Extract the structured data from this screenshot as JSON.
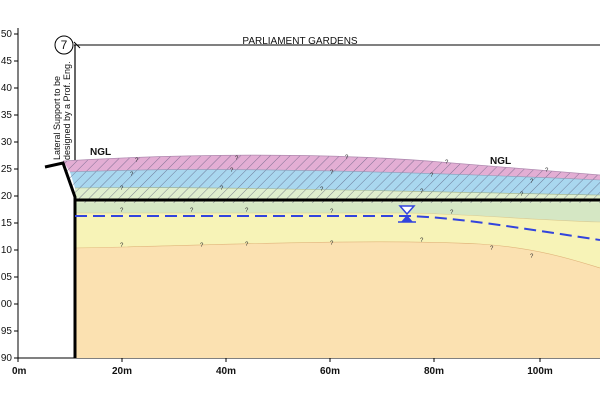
{
  "header": {
    "title": "PARLIAMENT GARDENS"
  },
  "callout": {
    "number": "7",
    "note": [
      "Lateral Support to be",
      "designed by a Prof. Eng."
    ]
  },
  "labels": {
    "ngl_left": "NGL",
    "ngl_right": "NGL",
    "unknown_marker": "?"
  },
  "axes": {
    "y_ticks": [
      ".50",
      ".45",
      ".40",
      ".35",
      ".30",
      ".25",
      ".20",
      ".15",
      ".10",
      ".05",
      ".00",
      ".95",
      ".90"
    ],
    "x_ticks": [
      "0m",
      "20m",
      "40m",
      "60m",
      "80m",
      "100m"
    ]
  },
  "layers": [
    {
      "name": "upper-fill-hatched",
      "color": "#e3aed4"
    },
    {
      "name": "upper-fill-blue",
      "color": "#a9d7ef"
    },
    {
      "name": "upper-fill-green",
      "color": "#dfeecd"
    },
    {
      "name": "band-green",
      "color": "#d5e7c4"
    },
    {
      "name": "band-yellow",
      "color": "#f7f3b7"
    },
    {
      "name": "base-orange",
      "color": "#fbe1b1"
    }
  ],
  "colors": {
    "water_line": "#3344dd",
    "outline": "#000000"
  }
}
